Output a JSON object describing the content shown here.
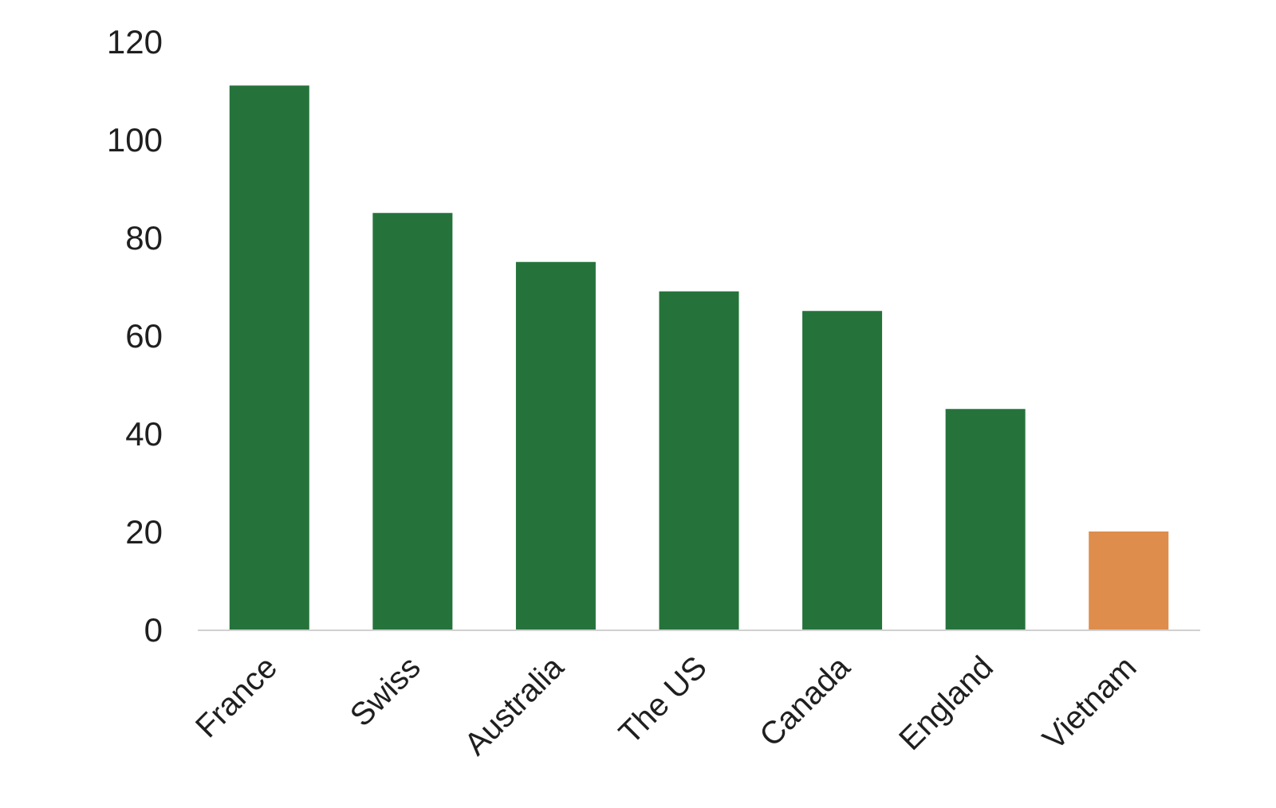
{
  "chart_data": {
    "type": "bar",
    "title": "",
    "xlabel": "",
    "ylabel": "",
    "categories": [
      "France",
      "Swiss",
      "Australia",
      "The US",
      "Canada",
      "England",
      "Vietnam"
    ],
    "values": [
      111,
      85,
      75,
      69,
      65,
      45,
      20
    ],
    "ylim": [
      0,
      120
    ],
    "yticks": [
      0,
      20,
      40,
      60,
      80,
      100,
      120
    ],
    "grid": false,
    "legend": "none",
    "colors": {
      "default": "#25733B",
      "highlight": "#DE8D4C",
      "highlight_category": "Vietnam",
      "axis": "#d0d0d0"
    }
  }
}
